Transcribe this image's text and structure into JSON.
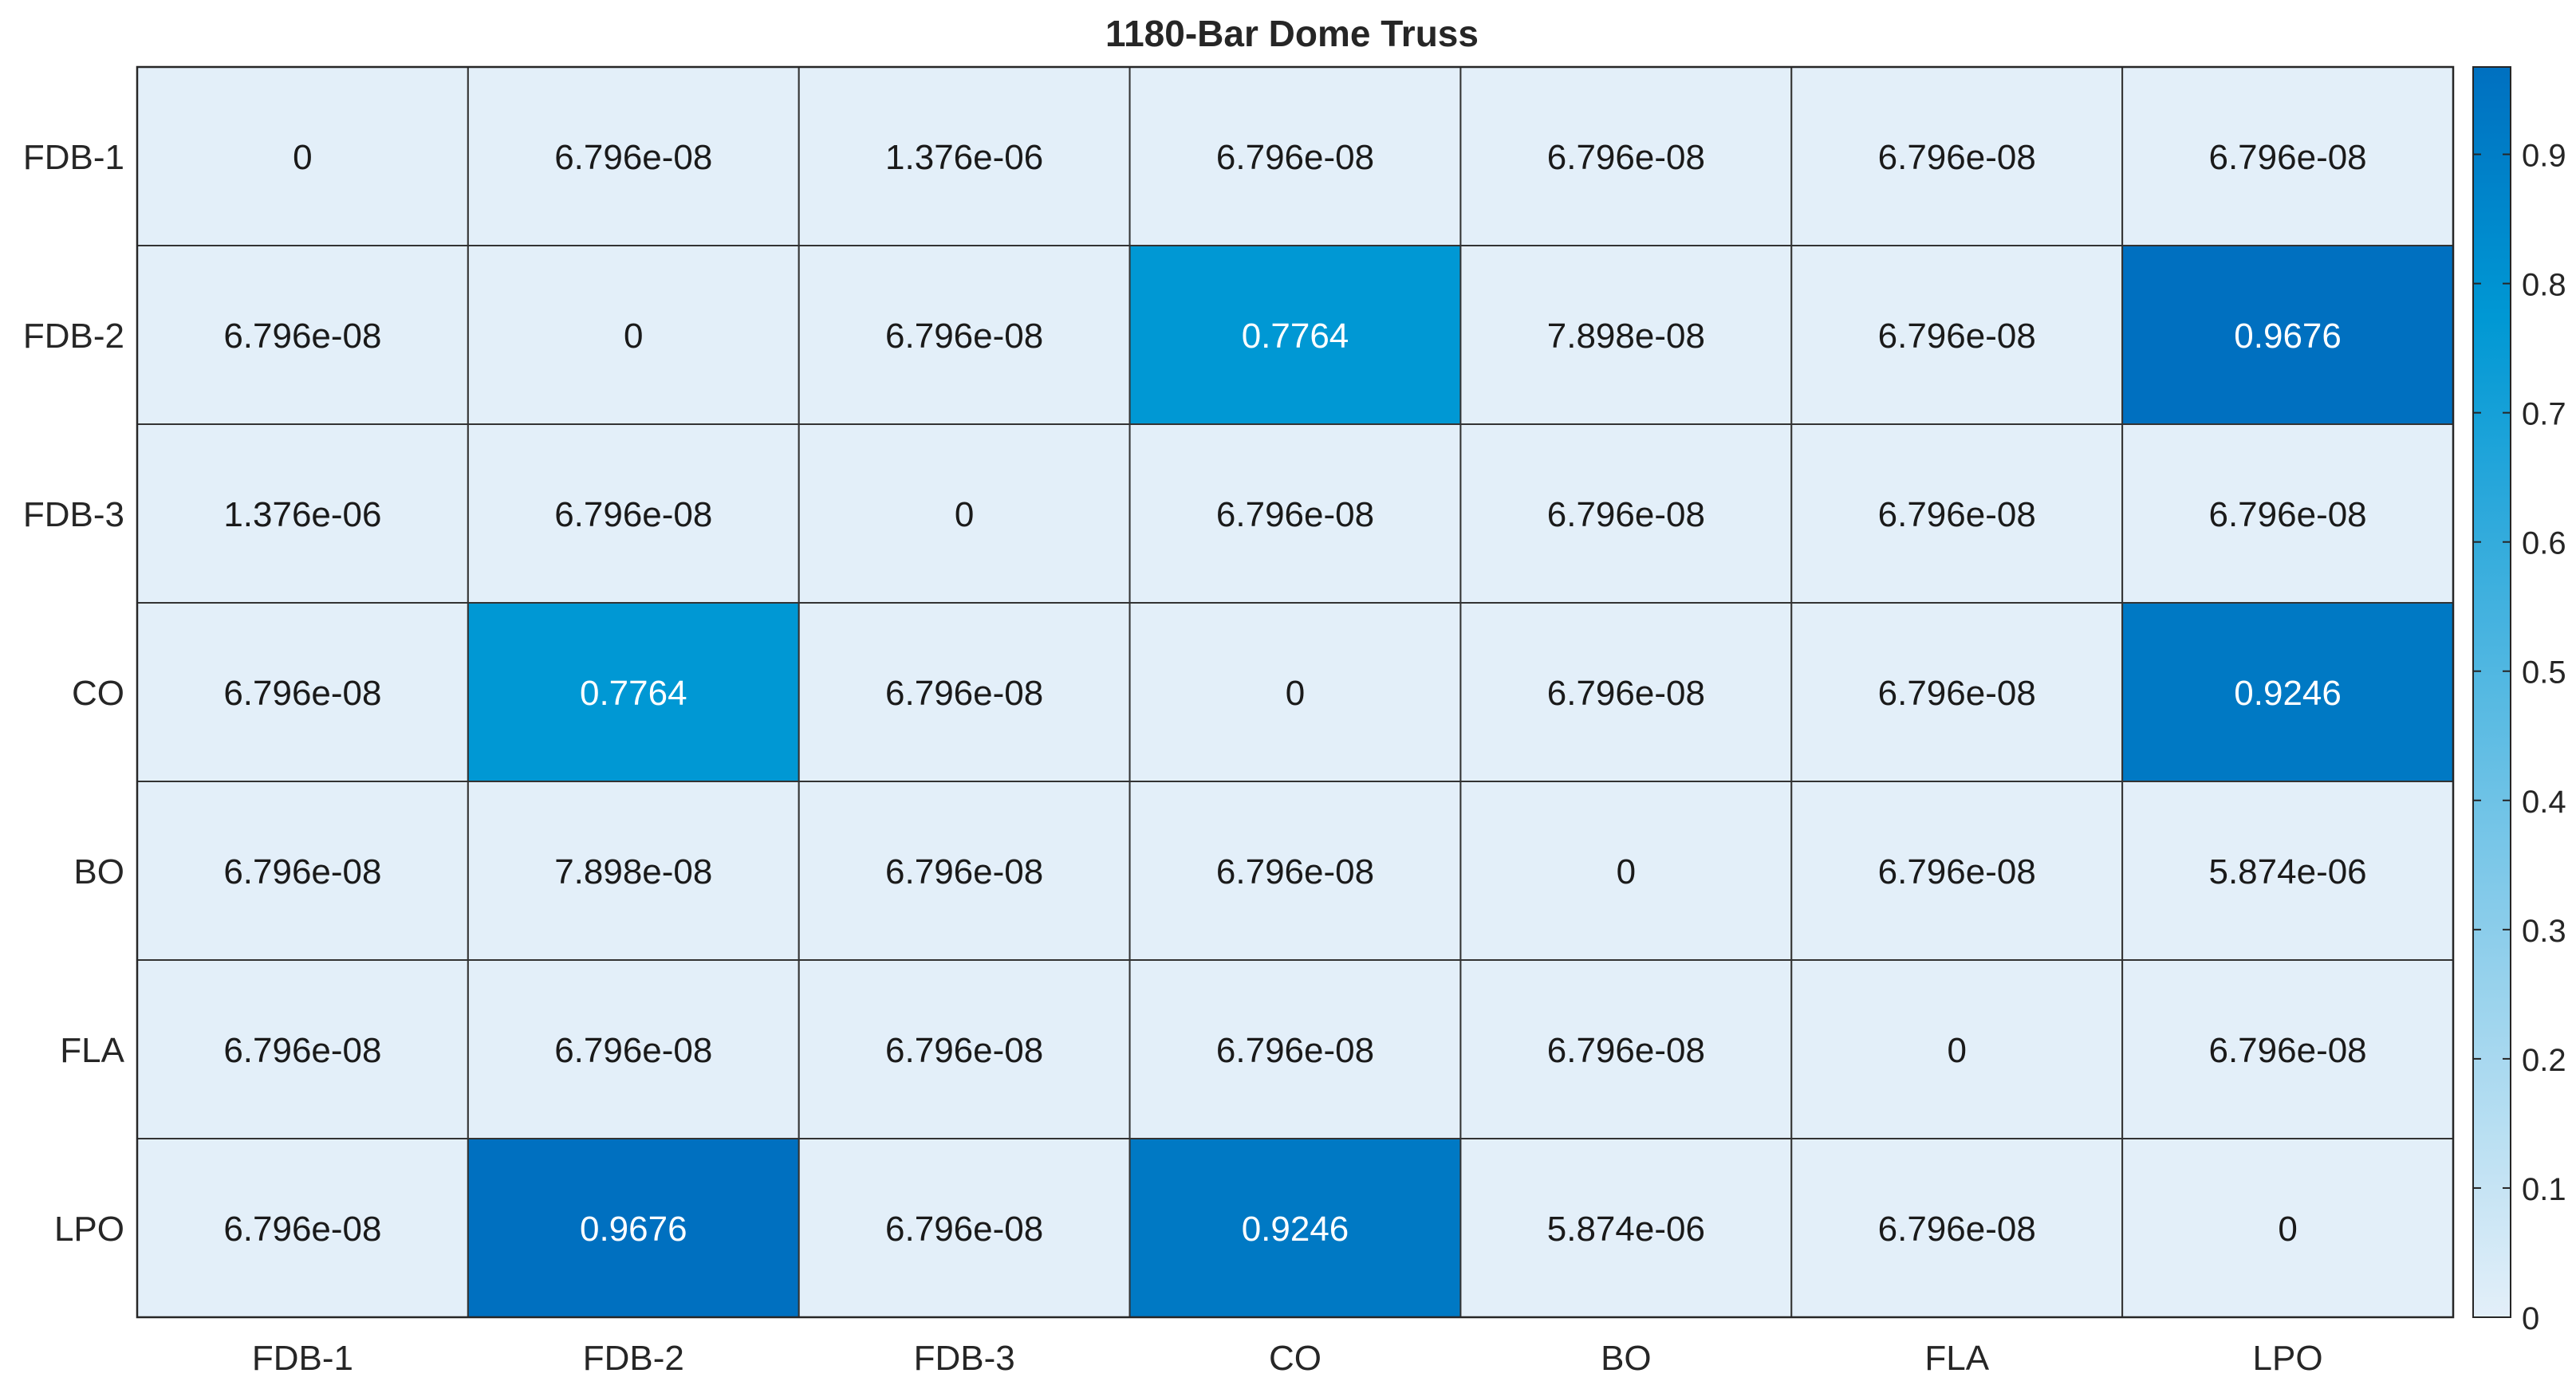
{
  "chart_data": {
    "type": "heatmap",
    "title": "1180-Bar Dome Truss",
    "x_labels": [
      "FDB-1",
      "FDB-2",
      "FDB-3",
      "CO",
      "BO",
      "FLA",
      "LPO"
    ],
    "y_labels": [
      "FDB-1",
      "FDB-2",
      "FDB-3",
      "CO",
      "BO",
      "FLA",
      "LPO"
    ],
    "cells": [
      [
        "0",
        "6.796e-08",
        "1.376e-06",
        "6.796e-08",
        "6.796e-08",
        "6.796e-08",
        "6.796e-08"
      ],
      [
        "6.796e-08",
        "0",
        "6.796e-08",
        "0.7764",
        "7.898e-08",
        "6.796e-08",
        "0.9676"
      ],
      [
        "1.376e-06",
        "6.796e-08",
        "0",
        "6.796e-08",
        "6.796e-08",
        "6.796e-08",
        "6.796e-08"
      ],
      [
        "6.796e-08",
        "0.7764",
        "6.796e-08",
        "0",
        "6.796e-08",
        "6.796e-08",
        "0.9246"
      ],
      [
        "6.796e-08",
        "7.898e-08",
        "6.796e-08",
        "6.796e-08",
        "0",
        "6.796e-08",
        "5.874e-06"
      ],
      [
        "6.796e-08",
        "6.796e-08",
        "6.796e-08",
        "6.796e-08",
        "6.796e-08",
        "0",
        "6.796e-08"
      ],
      [
        "6.796e-08",
        "0.9676",
        "6.796e-08",
        "0.9246",
        "5.874e-06",
        "6.796e-08",
        "0"
      ]
    ],
    "colorbar": {
      "range": [
        0,
        0.9676
      ],
      "ticks": [
        "0",
        "0.1",
        "0.2",
        "0.3",
        "0.4",
        "0.5",
        "0.6",
        "0.7",
        "0.8",
        "0.9"
      ],
      "tick_values": [
        0,
        0.1,
        0.2,
        0.3,
        0.4,
        0.5,
        0.6,
        0.7,
        0.8,
        0.9
      ],
      "color_low": "#e3eff9",
      "color_high": "#0070c0"
    },
    "grid": true,
    "legend": "colorbar-right"
  }
}
